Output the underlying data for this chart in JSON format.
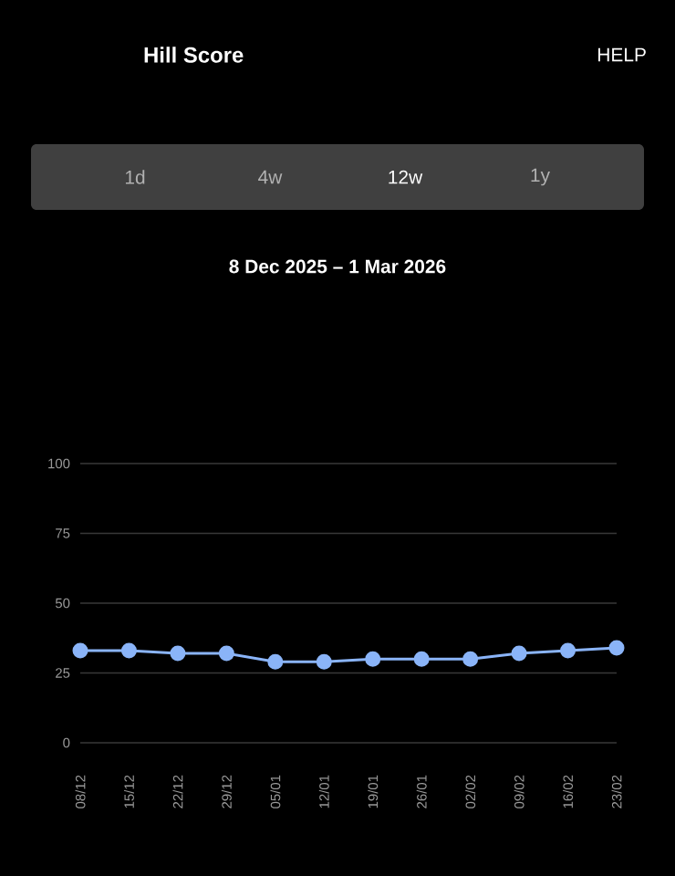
{
  "chart_data": {
    "type": "line",
    "title": "Hill Score",
    "subtitle": "8 Dec 2025 – 1 Mar 2026",
    "annotations": [
      "HELP",
      "1d",
      "4w",
      "12w",
      "1y"
    ],
    "categories": [
      "08/12",
      "15/12",
      "22/12",
      "29/12",
      "05/01",
      "12/01",
      "19/01",
      "26/01",
      "02/02",
      "09/02",
      "16/02",
      "23/02"
    ],
    "series": [
      {
        "color": "#8ab4f8",
        "values": [
          33,
          33,
          32,
          32,
          29,
          29,
          30,
          30,
          30,
          32,
          33,
          34
        ]
      }
    ],
    "ylim": [
      0,
      100
    ],
    "yticks": [
      0,
      25,
      50,
      75,
      100
    ],
    "grid": "y",
    "marker": "circle",
    "line_style": "solid"
  }
}
